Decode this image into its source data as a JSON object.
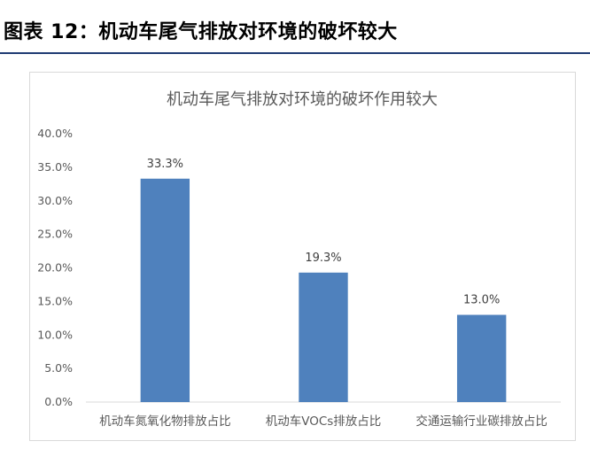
{
  "figure": {
    "title": "图表 12：机动车尾气排放对环境的破坏较大"
  },
  "chart_data": {
    "type": "bar",
    "title": "机动车尾气排放对环境的破坏作用较大",
    "xlabel": "",
    "ylabel": "",
    "categories": [
      "机动车氮氧化物排放占比",
      "机动车VOCs排放占比",
      "交通运输行业碳排放占比"
    ],
    "values": [
      33.3,
      19.3,
      13.0
    ],
    "value_labels": [
      "33.3%",
      "19.3%",
      "13.0%"
    ],
    "ylim": [
      0,
      40
    ],
    "yticks": [
      "0.0%",
      "5.0%",
      "10.0%",
      "15.0%",
      "20.0%",
      "25.0%",
      "30.0%",
      "35.0%",
      "40.0%"
    ],
    "grid": false,
    "legend": "none",
    "bar_color": "#4f81bd"
  }
}
